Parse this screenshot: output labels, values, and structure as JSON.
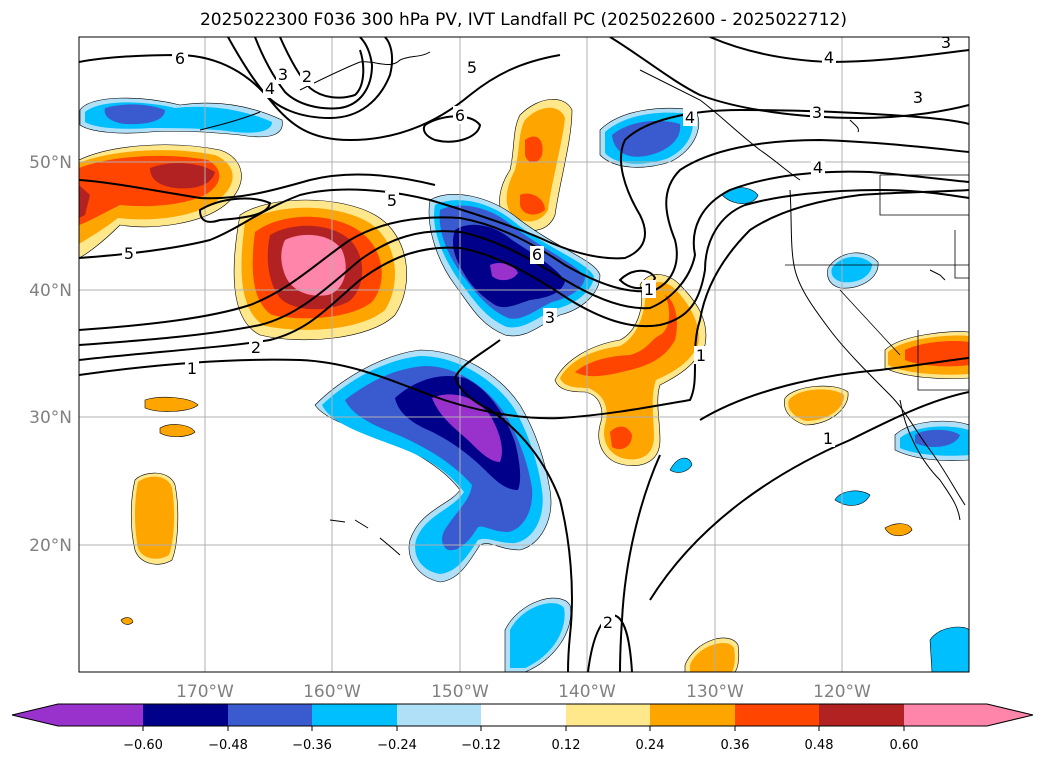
{
  "title": "2025022300 F036 300 hPa PV, IVT Landfall PC (2025022600 - 2025022712)",
  "lat_labels": [
    "50°N",
    "40°N",
    "30°N",
    "20°N"
  ],
  "lon_labels": [
    "170°W",
    "160°W",
    "150°W",
    "140°W",
    "130°W",
    "120°W"
  ],
  "contour_labels": [
    "6",
    "3",
    "2",
    "4",
    "5",
    "6",
    "4",
    "3",
    "3",
    "3",
    "4",
    "5",
    "5",
    "6",
    "3",
    "2",
    "1",
    "1",
    "1",
    "1",
    "2",
    "4"
  ],
  "colorbar": {
    "ticks": [
      "−0.60",
      "−0.48",
      "−0.36",
      "−0.24",
      "−0.12",
      "0.12",
      "0.24",
      "0.36",
      "0.48",
      "0.60"
    ],
    "colors": [
      "#9932cc",
      "#00008b",
      "#3a5bcf",
      "#00bfff",
      "#b0e0f8",
      "#ffffff",
      "#ffe88c",
      "#ffa500",
      "#ff4500",
      "#b22222",
      "#ff85aa",
      "#ff85aa"
    ]
  },
  "colors": {
    "purple": "#9932cc",
    "navy": "#00008b",
    "royal": "#3a5bcf",
    "sky": "#00bfff",
    "pale_blue": "#b0e0f8",
    "pale_yellow": "#ffe88c",
    "orange": "#ffa500",
    "red_orange": "#ff4500",
    "firebrick": "#b22222",
    "pink": "#ff85aa"
  }
}
